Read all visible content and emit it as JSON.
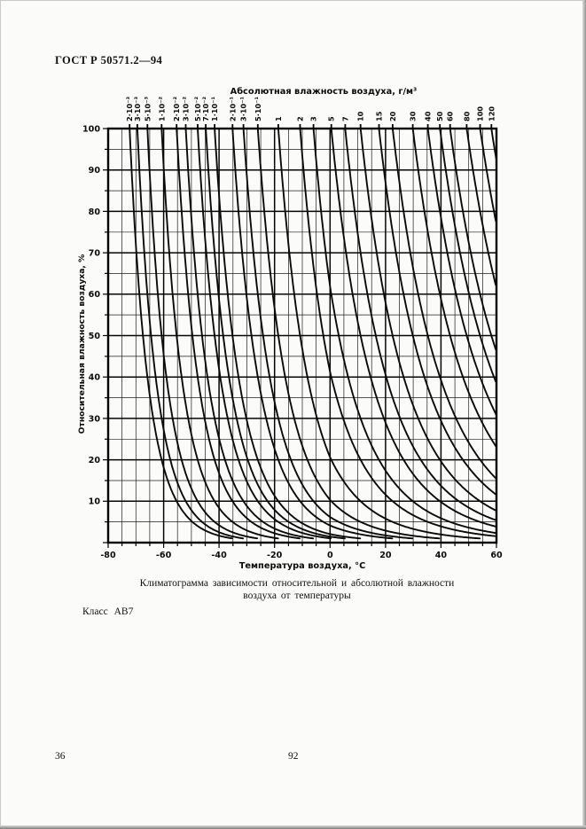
{
  "page": {
    "header": "ГОСТ Р 50571.2—94",
    "caption": [
      "Климатограмма зависимости относительной и абсолютной влажности",
      "воздуха от температуры"
    ],
    "class_label": "Класс АВ7",
    "page_number_left": "36",
    "page_number_center": "92"
  },
  "chart_data": {
    "type": "line",
    "title": "Абсолютная влажность воздуха, г/м³",
    "xlabel": "Температура воздуха, °С",
    "ylabel": "Относительная влажность воздуха, %",
    "xlim": [
      -80,
      60
    ],
    "ylim": [
      0,
      100
    ],
    "x_ticks": [
      -80,
      -60,
      -40,
      -20,
      0,
      20,
      40,
      60
    ],
    "y_ticks": [
      10,
      20,
      30,
      40,
      50,
      60,
      70,
      80,
      90,
      100
    ],
    "grid": "on",
    "grid_minor_step_x_deg": 5,
    "grid_minor_step_y_pct": 5,
    "curve_family": "lines of constant absolute humidity (g/m³); RH(T) = 100·AH/ρsat(T), ρsat = saturation water-vapour density (over ice below 0 °C, over water above)",
    "line_color": "#0a0a0a",
    "series": [
      {
        "label": "2·10⁻³",
        "abs_humidity": 0.002
      },
      {
        "label": "3·10⁻³",
        "abs_humidity": 0.003
      },
      {
        "label": "5·10⁻³",
        "abs_humidity": 0.005
      },
      {
        "label": "1·10⁻²",
        "abs_humidity": 0.01
      },
      {
        "label": "2·10⁻²",
        "abs_humidity": 0.02
      },
      {
        "label": "3·10⁻²",
        "abs_humidity": 0.03
      },
      {
        "label": "5·10⁻²",
        "abs_humidity": 0.05
      },
      {
        "label": "7·10⁻²",
        "abs_humidity": 0.07
      },
      {
        "label": "1·10⁻¹",
        "abs_humidity": 0.1
      },
      {
        "label": "2·10⁻¹",
        "abs_humidity": 0.2
      },
      {
        "label": "3·10⁻¹",
        "abs_humidity": 0.3
      },
      {
        "label": "5·10⁻¹",
        "abs_humidity": 0.5
      },
      {
        "label": "1",
        "abs_humidity": 1
      },
      {
        "label": "2",
        "abs_humidity": 2
      },
      {
        "label": "3",
        "abs_humidity": 3
      },
      {
        "label": "5",
        "abs_humidity": 5
      },
      {
        "label": "7",
        "abs_humidity": 7
      },
      {
        "label": "10",
        "abs_humidity": 10
      },
      {
        "label": "15",
        "abs_humidity": 15
      },
      {
        "label": "20",
        "abs_humidity": 20
      },
      {
        "label": "30",
        "abs_humidity": 30
      },
      {
        "label": "40",
        "abs_humidity": 40
      },
      {
        "label": "50",
        "abs_humidity": 50
      },
      {
        "label": "60",
        "abs_humidity": 60
      },
      {
        "label": "80",
        "abs_humidity": 80
      },
      {
        "label": "100",
        "abs_humidity": 100
      },
      {
        "label": "120",
        "abs_humidity": 120
      }
    ]
  }
}
